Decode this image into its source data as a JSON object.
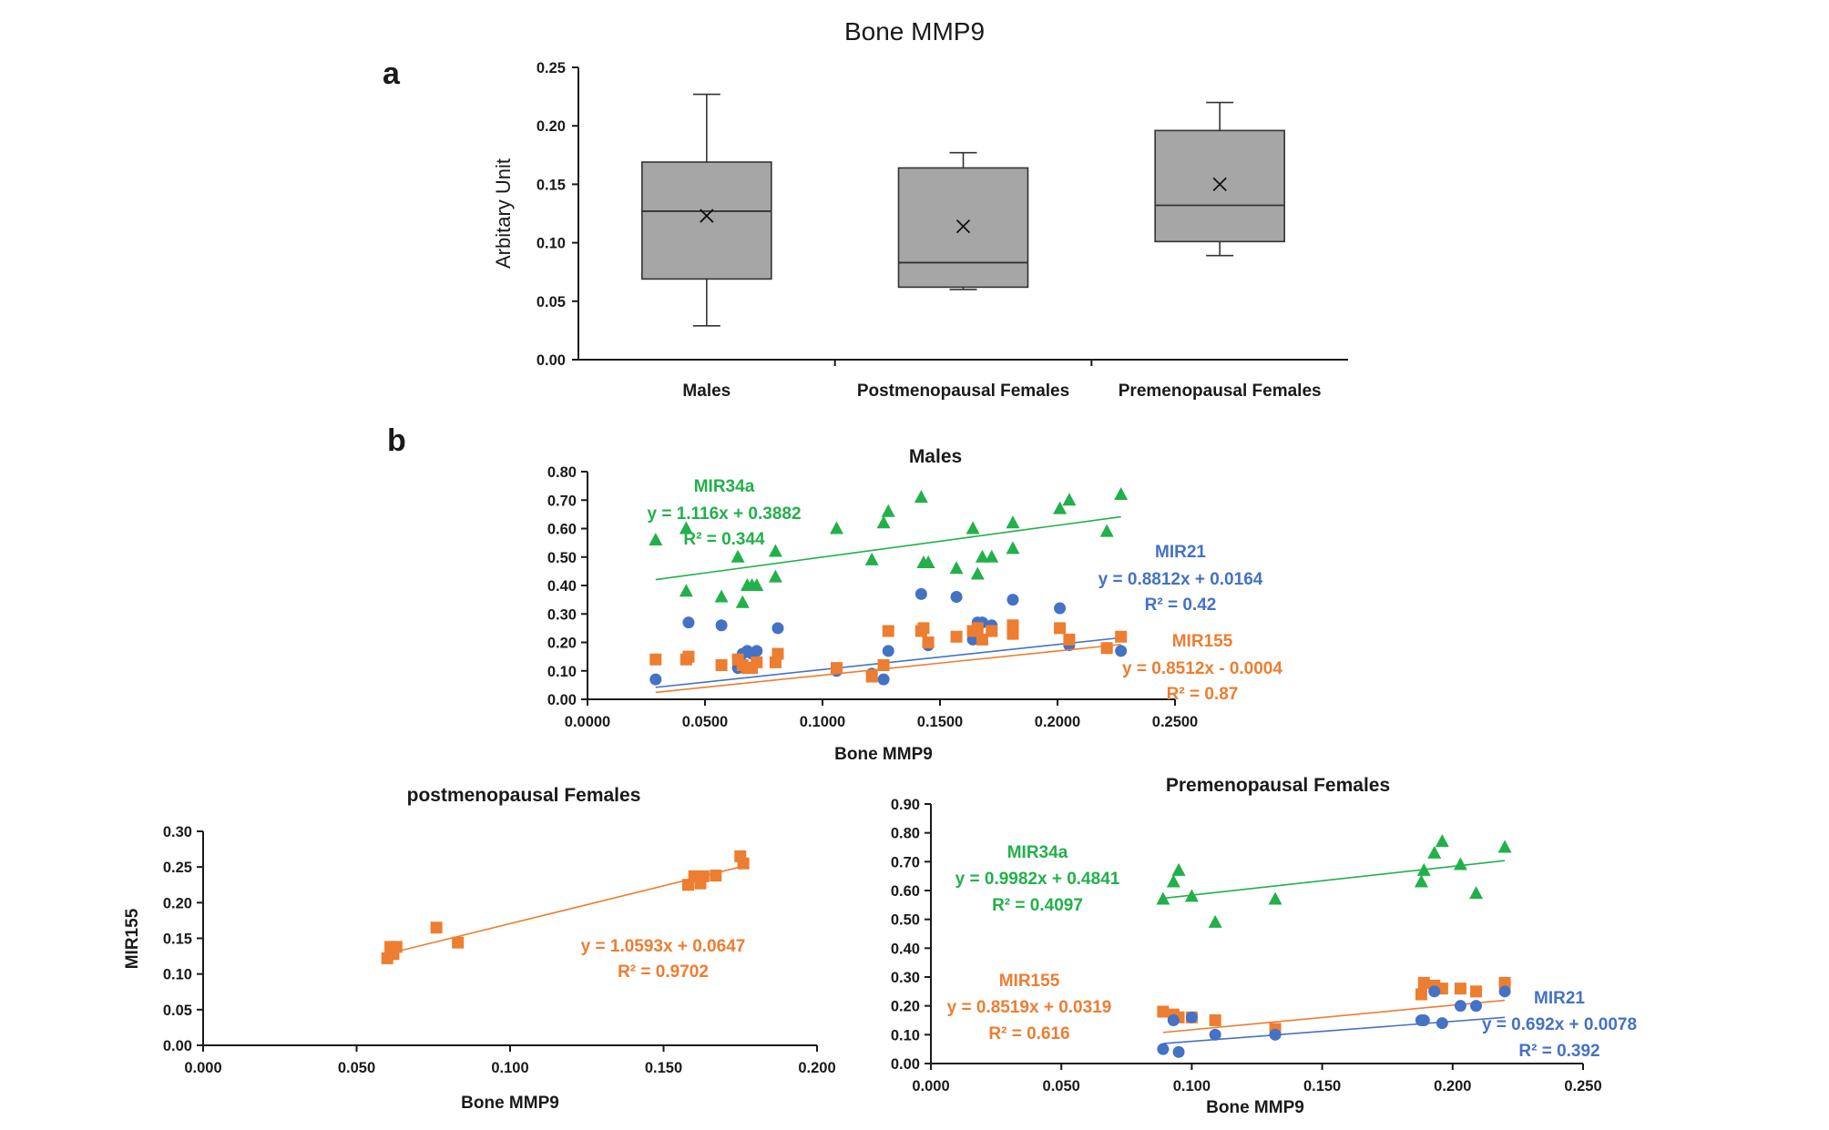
{
  "figure_title": "Bone MMP9",
  "panel_a_letter": "a",
  "panel_b_letter": "b",
  "colors": {
    "mir34a": "#22b04a",
    "mir21": "#4472c4",
    "mir155": "#ed7d31",
    "box": "#a6a6a6"
  },
  "chart_data": [
    {
      "type": "box",
      "id": "a",
      "ylabel": "Arbitary Unit",
      "ylim": [
        0,
        0.25
      ],
      "yticks": [
        "0.00",
        "0.05",
        "0.10",
        "0.15",
        "0.20",
        "0.25"
      ],
      "categories": [
        "Males",
        "Postmenopausal Females",
        "Premenopausal Females"
      ],
      "boxes": [
        {
          "min": 0.029,
          "q1": 0.069,
          "median": 0.127,
          "q3": 0.169,
          "max": 0.227,
          "mean": 0.123
        },
        {
          "min": 0.06,
          "q1": 0.062,
          "median": 0.083,
          "q3": 0.164,
          "max": 0.177,
          "mean": 0.114
        },
        {
          "min": 0.089,
          "q1": 0.101,
          "median": 0.132,
          "q3": 0.196,
          "max": 0.22,
          "mean": 0.15
        }
      ]
    },
    {
      "type": "scatter",
      "id": "males",
      "title": "Males",
      "xlabel": "Bone MMP9",
      "ylabel": "",
      "xlim": [
        0,
        0.25
      ],
      "ylim": [
        0,
        0.8
      ],
      "xticks": [
        "0.0000",
        "0.0500",
        "0.1000",
        "0.1500",
        "0.2000",
        "0.2500"
      ],
      "yticks": [
        "0.00",
        "0.10",
        "0.20",
        "0.30",
        "0.40",
        "0.50",
        "0.60",
        "0.70",
        "0.80"
      ],
      "series": [
        {
          "name": "MIR34a",
          "marker": "triangle",
          "color": "#22b04a",
          "equation": "y = 1.116x + 0.3882",
          "r2": "R² = 0.344",
          "fit": {
            "slope": 1.116,
            "intercept": 0.3882,
            "x0": 0.029,
            "x1": 0.227
          },
          "points": [
            [
              0.029,
              0.56
            ],
            [
              0.042,
              0.6
            ],
            [
              0.042,
              0.38
            ],
            [
              0.057,
              0.36
            ],
            [
              0.064,
              0.5
            ],
            [
              0.066,
              0.34
            ],
            [
              0.068,
              0.4
            ],
            [
              0.07,
              0.4
            ],
            [
              0.072,
              0.4
            ],
            [
              0.08,
              0.52
            ],
            [
              0.08,
              0.43
            ],
            [
              0.106,
              0.6
            ],
            [
              0.121,
              0.49
            ],
            [
              0.126,
              0.62
            ],
            [
              0.128,
              0.66
            ],
            [
              0.142,
              0.71
            ],
            [
              0.143,
              0.48
            ],
            [
              0.145,
              0.48
            ],
            [
              0.157,
              0.46
            ],
            [
              0.164,
              0.6
            ],
            [
              0.166,
              0.44
            ],
            [
              0.168,
              0.5
            ],
            [
              0.172,
              0.5
            ],
            [
              0.181,
              0.62
            ],
            [
              0.181,
              0.53
            ],
            [
              0.201,
              0.67
            ],
            [
              0.205,
              0.7
            ],
            [
              0.221,
              0.59
            ],
            [
              0.227,
              0.72
            ]
          ]
        },
        {
          "name": "MIR21",
          "marker": "circle",
          "color": "#4472c4",
          "equation": "y = 0.8812x + 0.0164",
          "r2": "R² = 0.42",
          "fit": {
            "slope": 0.8812,
            "intercept": 0.0164,
            "x0": 0.029,
            "x1": 0.227
          },
          "points": [
            [
              0.029,
              0.07
            ],
            [
              0.043,
              0.27
            ],
            [
              0.057,
              0.26
            ],
            [
              0.064,
              0.11
            ],
            [
              0.066,
              0.16
            ],
            [
              0.068,
              0.17
            ],
            [
              0.07,
              0.16
            ],
            [
              0.072,
              0.17
            ],
            [
              0.081,
              0.25
            ],
            [
              0.106,
              0.1
            ],
            [
              0.121,
              0.09
            ],
            [
              0.126,
              0.07
            ],
            [
              0.128,
              0.17
            ],
            [
              0.142,
              0.37
            ],
            [
              0.145,
              0.19
            ],
            [
              0.157,
              0.36
            ],
            [
              0.164,
              0.21
            ],
            [
              0.166,
              0.27
            ],
            [
              0.168,
              0.27
            ],
            [
              0.172,
              0.26
            ],
            [
              0.181,
              0.35
            ],
            [
              0.181,
              0.23
            ],
            [
              0.201,
              0.32
            ],
            [
              0.205,
              0.19
            ],
            [
              0.221,
              0.18
            ],
            [
              0.227,
              0.17
            ]
          ]
        },
        {
          "name": "MIR155",
          "marker": "square",
          "color": "#ed7d31",
          "equation": "y = 0.8512x - 0.0004",
          "r2": "R² = 0.87",
          "fit": {
            "slope": 0.8512,
            "intercept": -0.0004,
            "x0": 0.029,
            "x1": 0.227
          },
          "points": [
            [
              0.029,
              0.14
            ],
            [
              0.042,
              0.14
            ],
            [
              0.043,
              0.15
            ],
            [
              0.057,
              0.12
            ],
            [
              0.064,
              0.14
            ],
            [
              0.066,
              0.12
            ],
            [
              0.068,
              0.11
            ],
            [
              0.07,
              0.11
            ],
            [
              0.072,
              0.13
            ],
            [
              0.08,
              0.13
            ],
            [
              0.081,
              0.16
            ],
            [
              0.106,
              0.11
            ],
            [
              0.121,
              0.08
            ],
            [
              0.126,
              0.12
            ],
            [
              0.128,
              0.24
            ],
            [
              0.142,
              0.24
            ],
            [
              0.143,
              0.25
            ],
            [
              0.145,
              0.2
            ],
            [
              0.157,
              0.22
            ],
            [
              0.164,
              0.24
            ],
            [
              0.166,
              0.25
            ],
            [
              0.168,
              0.21
            ],
            [
              0.172,
              0.24
            ],
            [
              0.181,
              0.23
            ],
            [
              0.181,
              0.26
            ],
            [
              0.201,
              0.25
            ],
            [
              0.205,
              0.21
            ],
            [
              0.221,
              0.18
            ],
            [
              0.227,
              0.22
            ]
          ]
        }
      ]
    },
    {
      "type": "scatter",
      "id": "post",
      "title": "postmenopausal Females",
      "xlabel": "Bone MMP9",
      "ylabel": "MIR155",
      "xlim": [
        0,
        0.2
      ],
      "ylim": [
        0,
        0.3
      ],
      "xticks": [
        "0.000",
        "0.050",
        "0.100",
        "0.150",
        "0.200"
      ],
      "yticks": [
        "0.00",
        "0.05",
        "0.10",
        "0.15",
        "0.20",
        "0.25",
        "0.30"
      ],
      "series": [
        {
          "name": "MIR155",
          "marker": "square",
          "color": "#ed7d31",
          "equation": "y = 1.0593x + 0.0647",
          "r2": "R² = 0.9702",
          "fit": {
            "slope": 1.0593,
            "intercept": 0.0647,
            "x0": 0.06,
            "x1": 0.177
          },
          "points": [
            [
              0.06,
              0.122
            ],
            [
              0.061,
              0.138
            ],
            [
              0.062,
              0.128
            ],
            [
              0.063,
              0.138
            ],
            [
              0.076,
              0.165
            ],
            [
              0.083,
              0.144
            ],
            [
              0.158,
              0.225
            ],
            [
              0.16,
              0.237
            ],
            [
              0.162,
              0.227
            ],
            [
              0.163,
              0.237
            ],
            [
              0.167,
              0.238
            ],
            [
              0.175,
              0.265
            ],
            [
              0.176,
              0.255
            ]
          ]
        }
      ]
    },
    {
      "type": "scatter",
      "id": "pre",
      "title": "Premenopausal Females",
      "xlabel": "Bone MMP9",
      "ylabel": "",
      "xlim": [
        0,
        0.25
      ],
      "ylim": [
        0,
        0.9
      ],
      "xticks": [
        "0.000",
        "0.050",
        "0.100",
        "0.150",
        "0.200",
        "0.250"
      ],
      "yticks": [
        "0.00",
        "0.10",
        "0.20",
        "0.30",
        "0.40",
        "0.50",
        "0.60",
        "0.70",
        "0.80",
        "0.90"
      ],
      "series": [
        {
          "name": "MIR34a",
          "marker": "triangle",
          "color": "#22b04a",
          "equation": "y = 0.9982x + 0.4841",
          "r2": "R² = 0.4097",
          "fit": {
            "slope": 0.9982,
            "intercept": 0.4841,
            "x0": 0.089,
            "x1": 0.22
          },
          "points": [
            [
              0.089,
              0.57
            ],
            [
              0.093,
              0.63
            ],
            [
              0.095,
              0.67
            ],
            [
              0.1,
              0.58
            ],
            [
              0.109,
              0.49
            ],
            [
              0.132,
              0.57
            ],
            [
              0.188,
              0.63
            ],
            [
              0.189,
              0.67
            ],
            [
              0.193,
              0.73
            ],
            [
              0.196,
              0.77
            ],
            [
              0.203,
              0.69
            ],
            [
              0.209,
              0.59
            ],
            [
              0.22,
              0.75
            ]
          ]
        },
        {
          "name": "MIR155",
          "marker": "square",
          "color": "#ed7d31",
          "equation": "y = 0.8519x + 0.0319",
          "r2": "R² = 0.616",
          "fit": {
            "slope": 0.8519,
            "intercept": 0.0319,
            "x0": 0.089,
            "x1": 0.22
          },
          "points": [
            [
              0.089,
              0.18
            ],
            [
              0.093,
              0.17
            ],
            [
              0.095,
              0.16
            ],
            [
              0.1,
              0.16
            ],
            [
              0.109,
              0.15
            ],
            [
              0.132,
              0.12
            ],
            [
              0.188,
              0.24
            ],
            [
              0.189,
              0.28
            ],
            [
              0.193,
              0.27
            ],
            [
              0.196,
              0.26
            ],
            [
              0.203,
              0.26
            ],
            [
              0.209,
              0.25
            ],
            [
              0.22,
              0.28
            ]
          ]
        },
        {
          "name": "MIR21",
          "marker": "circle",
          "color": "#4472c4",
          "equation": "y = 0.692x + 0.0078",
          "r2": "R² = 0.392",
          "fit": {
            "slope": 0.692,
            "intercept": 0.0078,
            "x0": 0.089,
            "x1": 0.22
          },
          "points": [
            [
              0.089,
              0.05
            ],
            [
              0.093,
              0.15
            ],
            [
              0.095,
              0.04
            ],
            [
              0.1,
              0.16
            ],
            [
              0.109,
              0.1
            ],
            [
              0.132,
              0.1
            ],
            [
              0.188,
              0.15
            ],
            [
              0.189,
              0.15
            ],
            [
              0.193,
              0.25
            ],
            [
              0.196,
              0.14
            ],
            [
              0.203,
              0.2
            ],
            [
              0.209,
              0.2
            ],
            [
              0.22,
              0.25
            ]
          ]
        }
      ]
    }
  ]
}
